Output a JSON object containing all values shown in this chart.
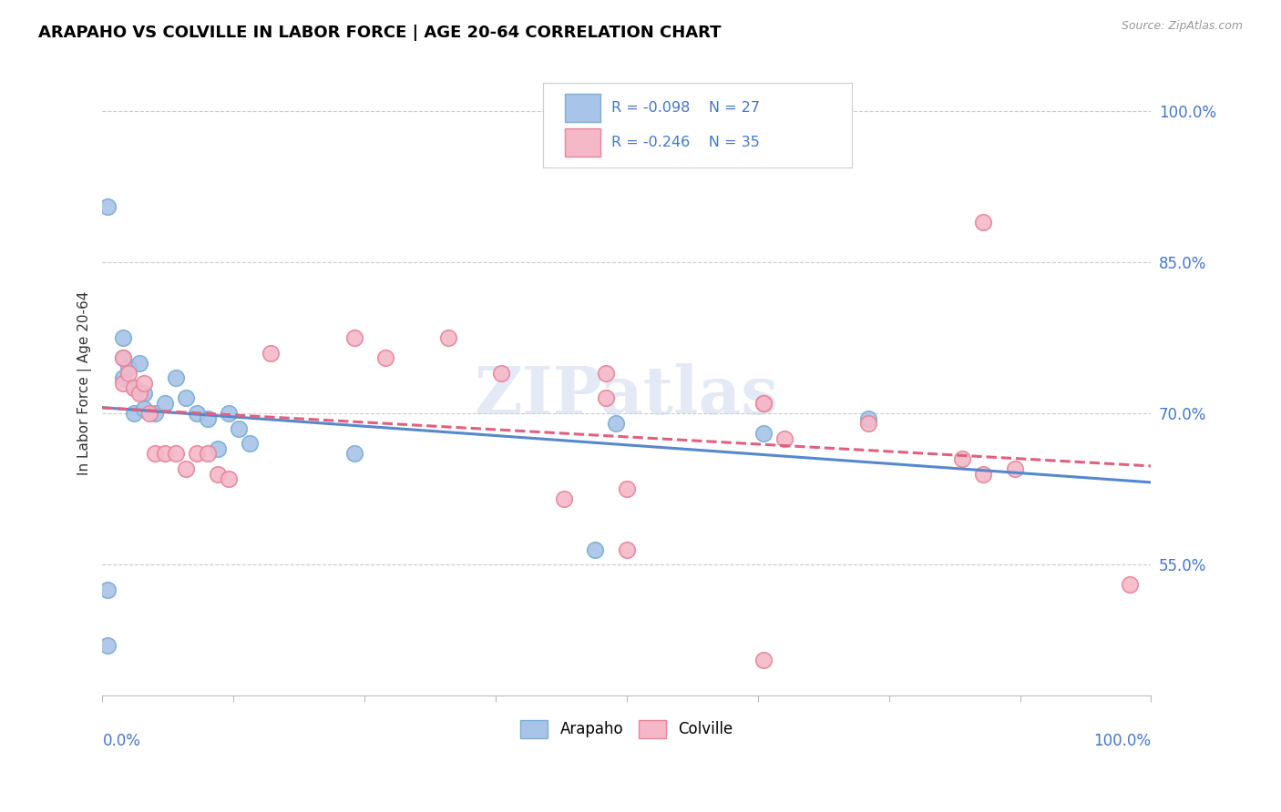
{
  "title": "ARAPAHO VS COLVILLE IN LABOR FORCE | AGE 20-64 CORRELATION CHART",
  "source": "Source: ZipAtlas.com",
  "ylabel": "In Labor Force | Age 20-64",
  "legend_label1": "Arapaho",
  "legend_label2": "Colville",
  "r1": -0.098,
  "n1": 27,
  "r2": -0.246,
  "n2": 35,
  "color_arapaho_fill": "#a8c4e8",
  "color_arapaho_edge": "#7bafd4",
  "color_colville_fill": "#f5b8c8",
  "color_colville_edge": "#e8849a",
  "color_arapaho_line": "#5588cc",
  "color_colville_line": "#e06080",
  "color_tick_label": "#4477cc",
  "color_grid": "#cccccc",
  "ytick_values": [
    0.55,
    0.7,
    0.85,
    1.0
  ],
  "ytick_labels": [
    "55.0%",
    "70.0%",
    "85.0%",
    "100.0%"
  ],
  "xlim": [
    0.0,
    1.0
  ],
  "ylim": [
    0.42,
    1.04
  ],
  "watermark": "ZIPatlas",
  "arapaho_x": [
    0.02,
    0.02,
    0.02,
    0.025,
    0.03,
    0.03,
    0.035,
    0.04,
    0.04,
    0.05,
    0.06,
    0.07,
    0.08,
    0.09,
    0.1,
    0.11,
    0.12,
    0.13,
    0.14,
    0.24,
    0.49,
    0.63,
    0.73,
    0.47,
    0.005,
    0.005,
    0.005
  ],
  "arapaho_y": [
    0.775,
    0.755,
    0.735,
    0.745,
    0.725,
    0.7,
    0.75,
    0.72,
    0.705,
    0.7,
    0.71,
    0.735,
    0.715,
    0.7,
    0.695,
    0.665,
    0.7,
    0.685,
    0.67,
    0.66,
    0.69,
    0.68,
    0.695,
    0.565,
    0.525,
    0.47,
    0.905
  ],
  "colville_x": [
    0.02,
    0.02,
    0.025,
    0.03,
    0.035,
    0.04,
    0.045,
    0.05,
    0.06,
    0.07,
    0.08,
    0.09,
    0.1,
    0.11,
    0.12,
    0.16,
    0.24,
    0.27,
    0.33,
    0.38,
    0.48,
    0.48,
    0.5,
    0.63,
    0.63,
    0.65,
    0.73,
    0.82,
    0.84,
    0.87,
    0.84,
    0.5,
    0.63,
    0.44,
    0.98
  ],
  "colville_y": [
    0.755,
    0.73,
    0.74,
    0.725,
    0.72,
    0.73,
    0.7,
    0.66,
    0.66,
    0.66,
    0.645,
    0.66,
    0.66,
    0.64,
    0.635,
    0.76,
    0.775,
    0.755,
    0.775,
    0.74,
    0.74,
    0.715,
    0.625,
    0.71,
    0.71,
    0.675,
    0.69,
    0.655,
    0.89,
    0.645,
    0.64,
    0.565,
    0.455,
    0.615,
    0.53
  ]
}
